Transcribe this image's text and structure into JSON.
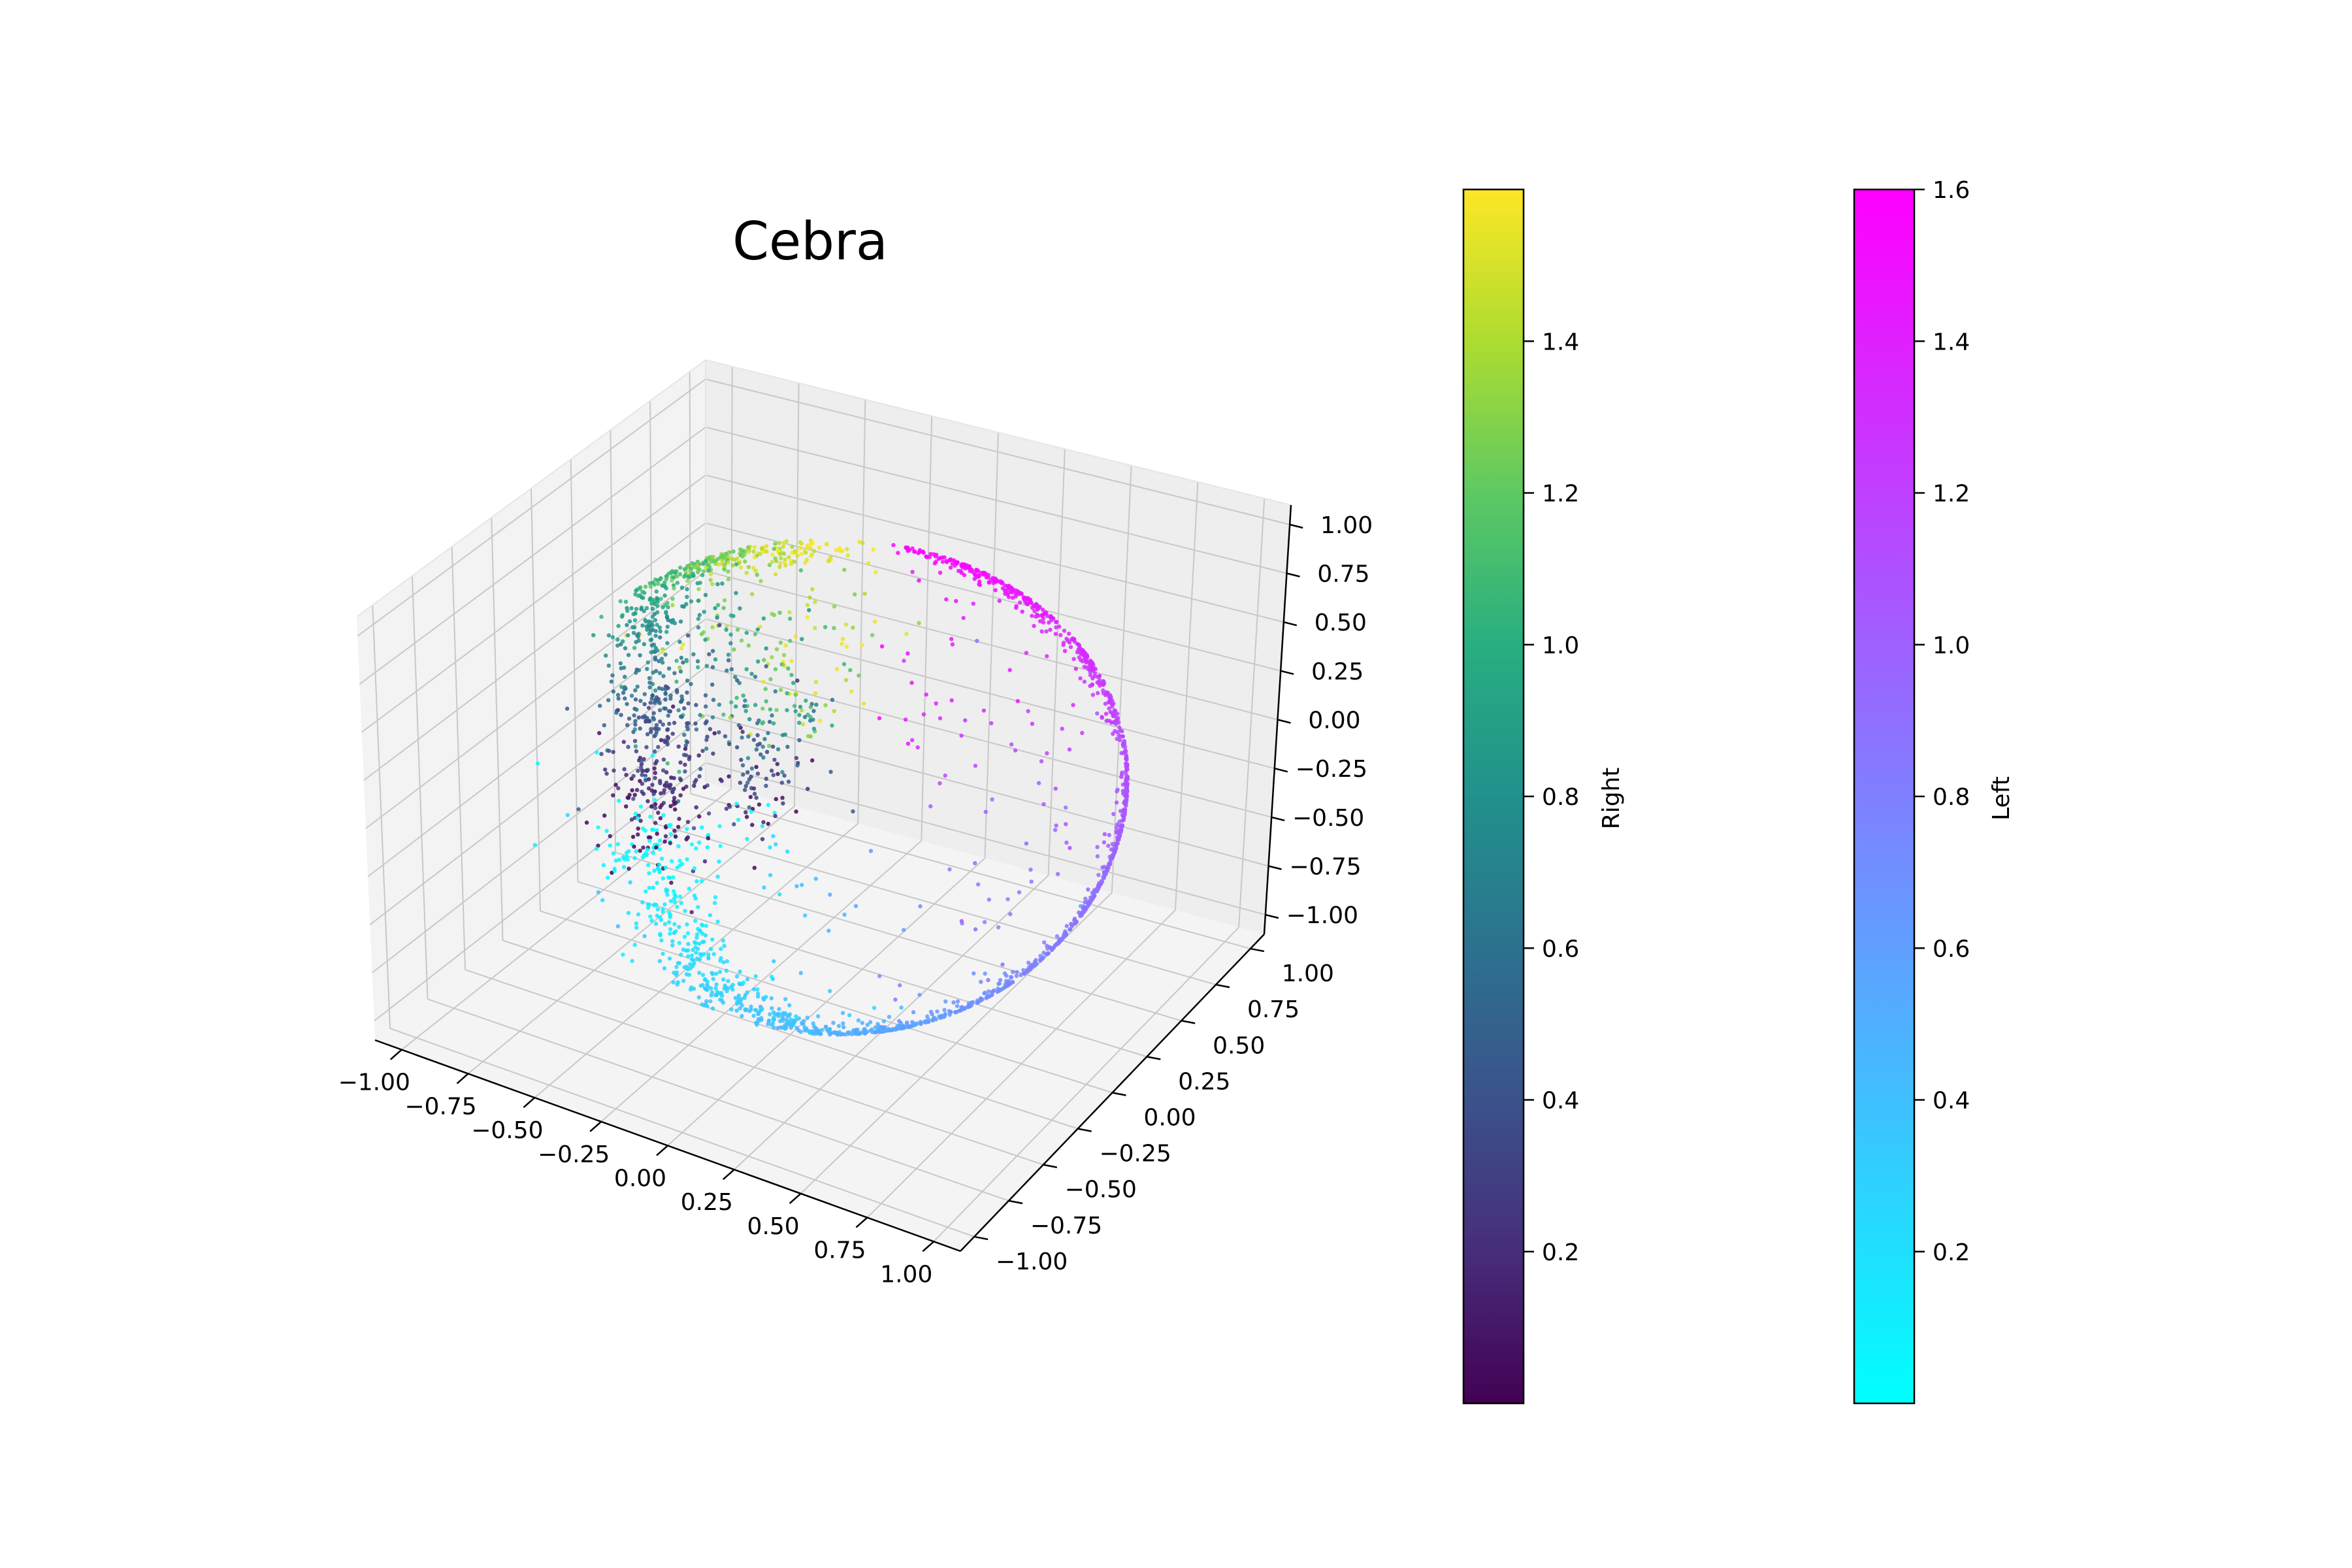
{
  "chart_data": {
    "type": "scatter",
    "title": "Cebra",
    "projection": "3d",
    "grid": true,
    "x_axis": {
      "ticks": [
        -1.0,
        -0.75,
        -0.5,
        -0.25,
        0.0,
        0.25,
        0.5,
        0.75,
        1.0
      ],
      "tick_labels": [
        "−1.00",
        "−0.75",
        "−0.50",
        "−0.25",
        "0.00",
        "0.25",
        "0.50",
        "0.75",
        "1.00"
      ]
    },
    "y_axis": {
      "ticks": [
        -1.0,
        -0.75,
        -0.5,
        -0.25,
        0.0,
        0.25,
        0.5,
        0.75,
        1.0
      ],
      "tick_labels": [
        "−1.00",
        "−0.75",
        "−0.50",
        "−0.25",
        "0.00",
        "0.25",
        "0.50",
        "0.75",
        "1.00"
      ]
    },
    "z_axis": {
      "ticks": [
        -1.0,
        -0.75,
        -0.5,
        -0.25,
        0.0,
        0.25,
        0.5,
        0.75,
        1.0
      ],
      "tick_labels": [
        "−1.00",
        "−0.75",
        "−0.50",
        "−0.25",
        "0.00",
        "0.25",
        "0.50",
        "0.75",
        "1.00"
      ]
    },
    "series": [
      {
        "name": "Right",
        "colormap": "viridis",
        "range": [
          0.0,
          1.6
        ]
      },
      {
        "name": "Left",
        "colormap": "cool",
        "range": [
          0.0,
          1.6
        ]
      }
    ],
    "colorbars": [
      {
        "label": "Right",
        "colormap": "viridis",
        "range": [
          0.0,
          1.6
        ],
        "ticks": [
          0.2,
          0.4,
          0.6,
          0.8,
          1.0,
          1.2,
          1.4
        ],
        "tick_labels": [
          "0.2",
          "0.4",
          "0.6",
          "0.8",
          "1.0",
          "1.2",
          "1.4"
        ]
      },
      {
        "label": "Left",
        "colormap": "cool",
        "range": [
          0.0,
          1.6
        ],
        "ticks": [
          0.2,
          0.4,
          0.6,
          0.8,
          1.0,
          1.2,
          1.4,
          1.6
        ],
        "tick_labels": [
          "0.2",
          "0.4",
          "0.6",
          "0.8",
          "1.0",
          "1.2",
          "1.4",
          "1.6"
        ]
      }
    ]
  }
}
